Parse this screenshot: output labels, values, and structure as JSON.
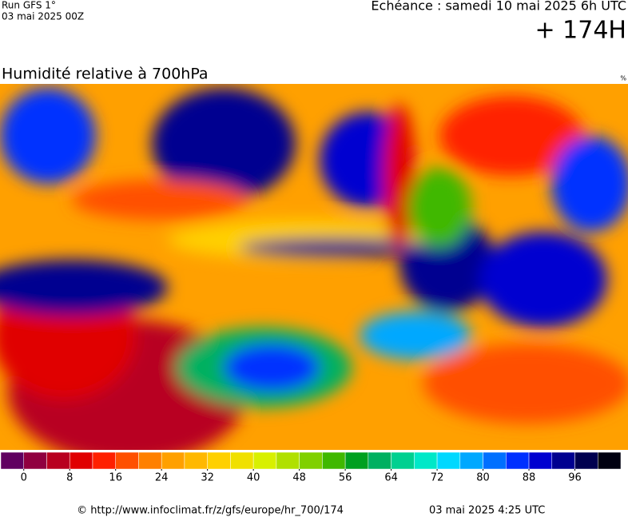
{
  "header": {
    "run": "Run GFS 1°",
    "run_date": "03 mai 2025 00Z",
    "valid": "Echéance : samedi 10 mai 2025 6h UTC",
    "lead": "+ 174H"
  },
  "map": {
    "title": "Humidité relative à 700hPa",
    "unit": "%"
  },
  "colorbar": {
    "range": [
      -4,
      104
    ],
    "colors": [
      "#600060",
      "#900040",
      "#b80020",
      "#e00000",
      "#ff2000",
      "#ff5000",
      "#ff8000",
      "#ffa000",
      "#ffb800",
      "#ffd000",
      "#f0e000",
      "#d8f000",
      "#b0e000",
      "#80d000",
      "#40b800",
      "#00a020",
      "#00b060",
      "#00d090",
      "#00e8c8",
      "#00d8ff",
      "#00a8ff",
      "#0070ff",
      "#0030ff",
      "#0000d0",
      "#000090",
      "#000050",
      "#000010"
    ],
    "ticks": [
      0,
      8,
      16,
      24,
      32,
      40,
      48,
      56,
      64,
      72,
      80,
      88,
      96
    ]
  },
  "footer": {
    "source": "© http://www.infoclimat.fr/z/gfs/europe/hr_700/174",
    "generated": "03 mai 2025  4:25 UTC"
  }
}
